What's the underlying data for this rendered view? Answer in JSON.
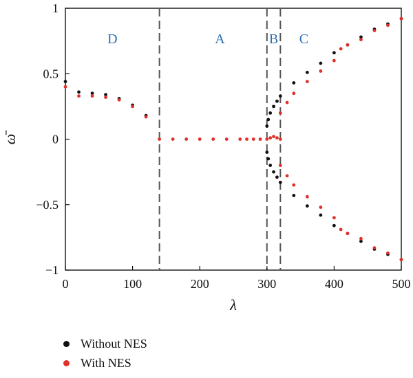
{
  "chart_data": {
    "type": "scatter",
    "xlabel": "λ",
    "ylabel": "ω̄",
    "xlim": [
      0,
      500
    ],
    "ylim": [
      -1,
      1
    ],
    "xticks": [
      "0",
      "100",
      "200",
      "300",
      "400",
      "500"
    ],
    "yticks": [
      "−1",
      "−0.5",
      "0",
      "0.5",
      "1"
    ],
    "grid": false,
    "legend_position": "bottom-left",
    "regions": [
      {
        "label": "D",
        "x": 70
      },
      {
        "label": "A",
        "x": 230
      },
      {
        "label": "B",
        "x": 310
      },
      {
        "label": "C",
        "x": 355
      }
    ],
    "boundaries": [
      140,
      300,
      320
    ],
    "colors": {
      "without": "#111111",
      "with": "#e0302a",
      "boundary": "#555555",
      "region_text": "#2a6fb4"
    },
    "series": [
      {
        "name": "Without NES",
        "color": "#111111",
        "points": [
          [
            0,
            0.44
          ],
          [
            20,
            0.36
          ],
          [
            40,
            0.35
          ],
          [
            60,
            0.34
          ],
          [
            80,
            0.31
          ],
          [
            100,
            0.26
          ],
          [
            120,
            0.18
          ],
          [
            300,
            0.1
          ],
          [
            302,
            0.15
          ],
          [
            305,
            0.2
          ],
          [
            310,
            0.25
          ],
          [
            315,
            0.29
          ],
          [
            320,
            0.33
          ],
          [
            340,
            0.43
          ],
          [
            360,
            0.51
          ],
          [
            380,
            0.58
          ],
          [
            400,
            0.66
          ],
          [
            420,
            0.72
          ],
          [
            440,
            0.78
          ],
          [
            460,
            0.84
          ],
          [
            480,
            0.88
          ],
          [
            500,
            0.92
          ],
          [
            300,
            -0.1
          ],
          [
            302,
            -0.15
          ],
          [
            305,
            -0.2
          ],
          [
            310,
            -0.25
          ],
          [
            315,
            -0.29
          ],
          [
            320,
            -0.33
          ],
          [
            340,
            -0.43
          ],
          [
            360,
            -0.51
          ],
          [
            380,
            -0.58
          ],
          [
            400,
            -0.66
          ],
          [
            420,
            -0.72
          ],
          [
            440,
            -0.78
          ],
          [
            460,
            -0.84
          ],
          [
            480,
            -0.88
          ],
          [
            500,
            -0.92
          ]
        ]
      },
      {
        "name": "With NES",
        "color": "#e0302a",
        "points": [
          [
            0,
            0.4
          ],
          [
            20,
            0.33
          ],
          [
            40,
            0.33
          ],
          [
            60,
            0.32
          ],
          [
            80,
            0.3
          ],
          [
            100,
            0.25
          ],
          [
            120,
            0.17
          ],
          [
            140,
            0.0
          ],
          [
            160,
            0.0
          ],
          [
            180,
            0.0
          ],
          [
            200,
            0.0
          ],
          [
            220,
            0.0
          ],
          [
            240,
            0.0
          ],
          [
            260,
            0.0
          ],
          [
            270,
            0.0
          ],
          [
            280,
            0.0
          ],
          [
            290,
            0.0
          ],
          [
            300,
            0.0
          ],
          [
            305,
            0.01
          ],
          [
            310,
            0.02
          ],
          [
            315,
            0.01
          ],
          [
            320,
            0.0
          ],
          [
            320,
            0.2
          ],
          [
            330,
            0.28
          ],
          [
            340,
            0.35
          ],
          [
            360,
            0.44
          ],
          [
            380,
            0.52
          ],
          [
            400,
            0.6
          ],
          [
            410,
            0.69
          ],
          [
            420,
            0.72
          ],
          [
            440,
            0.76
          ],
          [
            460,
            0.83
          ],
          [
            480,
            0.87
          ],
          [
            500,
            0.92
          ],
          [
            320,
            -0.2
          ],
          [
            330,
            -0.28
          ],
          [
            340,
            -0.35
          ],
          [
            360,
            -0.44
          ],
          [
            380,
            -0.52
          ],
          [
            400,
            -0.6
          ],
          [
            410,
            -0.69
          ],
          [
            420,
            -0.72
          ],
          [
            440,
            -0.76
          ],
          [
            460,
            -0.83
          ],
          [
            480,
            -0.87
          ],
          [
            500,
            -0.92
          ]
        ]
      }
    ]
  }
}
